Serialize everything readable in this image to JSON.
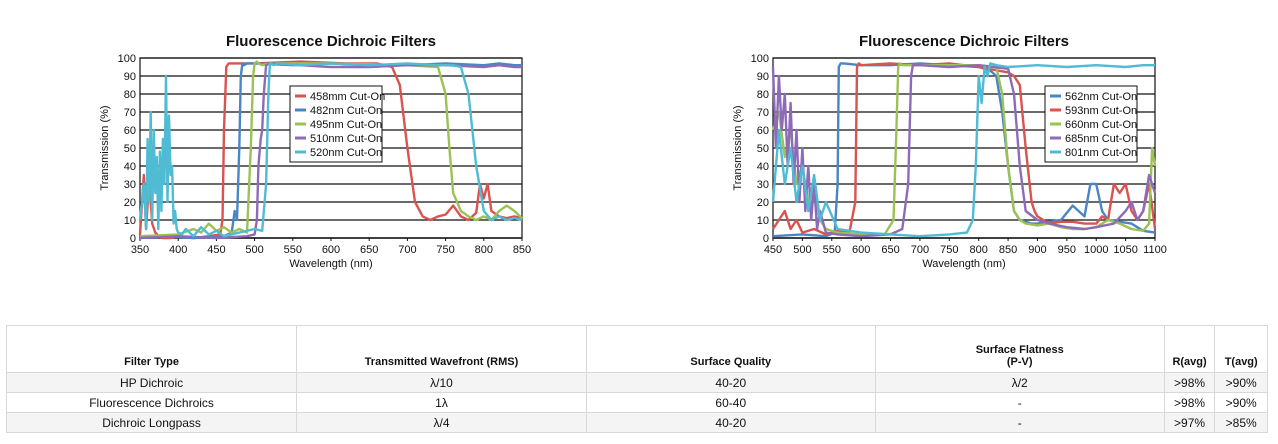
{
  "charts": {
    "chart_data": [
      {
        "type": "line",
        "title": "Fluorescence Dichroic Filters",
        "xlabel": "Wavelength (nm)",
        "ylabel": "Transmission (%)",
        "xlim": [
          350,
          850
        ],
        "ylim": [
          0,
          100
        ],
        "xticks": [
          "350",
          "400",
          "450",
          "500",
          "550",
          "600",
          "650",
          "700",
          "750",
          "800",
          "850"
        ],
        "yticks": [
          "0",
          "10",
          "20",
          "30",
          "40",
          "50",
          "60",
          "70",
          "80",
          "90",
          "100"
        ],
        "grid": "horizontal",
        "legend": "center-left",
        "series": [
          {
            "name": "458mm Cut-On",
            "color": "#d9534f",
            "x": [
              350,
              355,
              358,
              362,
              366,
              370,
              375,
              380,
              390,
              400,
              420,
              440,
              455,
              458,
              460,
              463,
              466,
              470,
              500,
              560,
              620,
              660,
              680,
              690,
              700,
              710,
              720,
              730,
              740,
              750,
              760,
              770,
              780,
              790,
              795,
              800,
              805,
              810,
              820,
              830,
              840,
              850
            ],
            "y": [
              2,
              35,
              5,
              33,
              8,
              3,
              1,
              0,
              0,
              1,
              0,
              1,
              2,
              10,
              60,
              95,
              97,
              97,
              97,
              98,
              97,
              97,
              95,
              85,
              50,
              20,
              12,
              10,
              12,
              13,
              18,
              12,
              10,
              14,
              30,
              22,
              30,
              15,
              12,
              11,
              12,
              11
            ]
          },
          {
            "name": "482nm Cut-On",
            "color": "#4a86c5",
            "x": [
              350,
              380,
              420,
              460,
              470,
              474,
              477,
              480,
              482,
              484,
              486,
              490,
              500,
              550,
              600,
              650,
              700,
              750,
              800,
              820,
              840,
              850
            ],
            "y": [
              0,
              1,
              0,
              1,
              3,
              15,
              10,
              50,
              90,
              97,
              96,
              97,
              97,
              96,
              97,
              96,
              96,
              97,
              96,
              97,
              96,
              96
            ],
            "t": [
              0,
              1,
              0,
              1,
              3,
              15,
              10,
              50,
              90,
              97,
              96,
              97,
              97,
              96,
              97,
              96,
              96,
              97,
              96,
              97,
              96,
              96
            ]
          },
          {
            "name": "495nm Cut-On",
            "color": "#9cc255",
            "x": [
              350,
              400,
              420,
              430,
              440,
              450,
              460,
              470,
              480,
              490,
              495,
              498,
              500,
              503,
              505,
              510,
              520,
              600,
              700,
              740,
              750,
              755,
              760,
              770,
              780,
              790,
              800,
              810,
              820,
              830,
              840,
              850
            ],
            "y": [
              1,
              2,
              5,
              3,
              8,
              4,
              6,
              3,
              5,
              3,
              50,
              90,
              97,
              98,
              97,
              96,
              97,
              97,
              96,
              95,
              80,
              50,
              25,
              15,
              12,
              10,
              12,
              10,
              15,
              18,
              15,
              11
            ],
            "t": [
              1,
              2,
              5,
              3,
              8,
              4,
              6,
              3,
              5,
              3,
              50,
              90,
              97,
              98,
              97,
              96,
              97,
              97,
              96,
              95,
              80,
              50,
              25,
              15,
              12,
              10,
              12,
              10,
              15,
              18,
              15,
              11
            ]
          },
          {
            "name": "510nm Cut-On",
            "color": "#8e6bb8",
            "x": [
              350,
              400,
              450,
              490,
              500,
              503,
              505,
              508,
              510,
              512,
              515,
              520,
              560,
              600,
              650,
              700,
              750,
              800,
              820,
              840,
              850
            ],
            "y": [
              0,
              1,
              0,
              1,
              2,
              10,
              40,
              55,
              60,
              80,
              96,
              97,
              96,
              95,
              95,
              96,
              96,
              95,
              96,
              95,
              95
            ]
          },
          {
            "name": "520nm Cut-On",
            "color": "#4fbcd4",
            "x": [
              350,
              355,
              358,
              360,
              362,
              364,
              366,
              368,
              370,
              372,
              374,
              376,
              378,
              380,
              382,
              384,
              386,
              388,
              390,
              392,
              394,
              396,
              398,
              400,
              405,
              410,
              420,
              430,
              440,
              450,
              460,
              480,
              500,
              510,
              515,
              518,
              520,
              522,
              525,
              530,
              560,
              600,
              650,
              700,
              740,
              760,
              770,
              780,
              790,
              800,
              810,
              820,
              830,
              840,
              850
            ],
            "y": [
              10,
              30,
              5,
              55,
              20,
              70,
              10,
              60,
              25,
              45,
              5,
              48,
              15,
              55,
              30,
              90,
              20,
              68,
              35,
              40,
              8,
              15,
              5,
              3,
              2,
              5,
              1,
              6,
              2,
              4,
              1,
              3,
              5,
              4,
              30,
              80,
              97,
              97,
              96,
              97,
              96,
              97,
              96,
              97,
              96,
              96,
              95,
              80,
              40,
              15,
              10,
              12,
              10,
              11,
              10
            ]
          }
        ]
      },
      {
        "type": "line",
        "title": "Fluorescence Dichroic Filters",
        "xlabel": "Wavelength (nm)",
        "ylabel": "Transmission (%)",
        "xlim": [
          450,
          1100
        ],
        "ylim": [
          0,
          100
        ],
        "xticks": [
          "450",
          "500",
          "550",
          "600",
          "650",
          "700",
          "750",
          "800",
          "850",
          "900",
          "950",
          "1000",
          "1050",
          "1100"
        ],
        "yticks": [
          "0",
          "10",
          "20",
          "30",
          "40",
          "50",
          "60",
          "70",
          "80",
          "90",
          "100"
        ],
        "grid": "horizontal",
        "legend": "center-right",
        "series": [
          {
            "name": "562nm Cut-On",
            "color": "#4a86c5",
            "x": [
              450,
              500,
              540,
              555,
              560,
              562,
              565,
              570,
              600,
              650,
              700,
              750,
              800,
              820,
              830,
              840,
              850,
              860,
              870,
              880,
              890,
              900,
              920,
              940,
              960,
              980,
              990,
              1000,
              1010,
              1020,
              1040,
              1060,
              1080,
              1100
            ],
            "y": [
              1,
              2,
              1,
              3,
              30,
              95,
              97,
              97,
              96,
              96,
              97,
              96,
              95,
              93,
              90,
              70,
              40,
              15,
              10,
              9,
              8,
              8,
              9,
              10,
              18,
              12,
              30,
              30,
              15,
              10,
              9,
              8,
              4,
              3
            ]
          },
          {
            "name": "593nm Cut-On",
            "color": "#d9534f",
            "x": [
              450,
              470,
              480,
              490,
              500,
              520,
              540,
              560,
              580,
              590,
              593,
              596,
              600,
              650,
              700,
              750,
              800,
              850,
              860,
              870,
              880,
              890,
              895,
              900,
              910,
              920,
              940,
              960,
              980,
              1000,
              1010,
              1020,
              1030,
              1040,
              1050,
              1060,
              1070,
              1080,
              1090,
              1100
            ],
            "y": [
              5,
              15,
              5,
              10,
              3,
              5,
              2,
              4,
              3,
              20,
              95,
              97,
              96,
              97,
              96,
              97,
              95,
              92,
              90,
              85,
              50,
              20,
              15,
              12,
              10,
              8,
              9,
              9,
              8,
              8,
              12,
              10,
              30,
              25,
              30,
              15,
              10,
              15,
              30,
              5
            ]
          },
          {
            "name": "660nm Cut-On",
            "color": "#9cc255",
            "x": [
              450,
              460,
              470,
              480,
              490,
              500,
              510,
              520,
              530,
              540,
              560,
              600,
              640,
              655,
              660,
              663,
              666,
              670,
              700,
              750,
              800,
              830,
              840,
              850,
              860,
              870,
              880,
              900,
              920,
              940,
              960,
              980,
              1000,
              1020,
              1040,
              1060,
              1080,
              1090,
              1095,
              1100
            ],
            "y": [
              60,
              70,
              45,
              60,
              30,
              40,
              20,
              25,
              10,
              5,
              3,
              2,
              2,
              10,
              60,
              95,
              97,
              96,
              96,
              96,
              96,
              95,
              80,
              40,
              15,
              10,
              8,
              7,
              8,
              6,
              5,
              5,
              6,
              10,
              8,
              5,
              4,
              8,
              50,
              40
            ]
          },
          {
            "name": "685nm Cut-On",
            "color": "#8e6bb8",
            "x": [
              450,
              455,
              460,
              465,
              470,
              475,
              480,
              485,
              490,
              495,
              500,
              505,
              510,
              515,
              520,
              525,
              530,
              540,
              560,
              600,
              650,
              670,
              680,
              685,
              688,
              690,
              700,
              750,
              800,
              850,
              860,
              870,
              880,
              900,
              920,
              950,
              980,
              1000,
              1030,
              1050,
              1060,
              1070,
              1080,
              1090,
              1100
            ],
            "y": [
              95,
              50,
              90,
              60,
              80,
              40,
              75,
              30,
              60,
              20,
              50,
              15,
              40,
              10,
              30,
              5,
              15,
              3,
              2,
              1,
              2,
              5,
              30,
              90,
              96,
              96,
              96,
              95,
              96,
              94,
              80,
              40,
              15,
              10,
              8,
              6,
              5,
              6,
              8,
              15,
              20,
              10,
              15,
              35,
              25
            ]
          },
          {
            "name": "801nm Cut-On",
            "color": "#4fbcd4",
            "x": [
              450,
              460,
              470,
              480,
              490,
              500,
              510,
              520,
              530,
              540,
              560,
              600,
              650,
              700,
              750,
              780,
              790,
              795,
              800,
              805,
              810,
              815,
              820,
              830,
              850,
              900,
              950,
              1000,
              1050,
              1080,
              1100
            ],
            "y": [
              20,
              60,
              30,
              50,
              20,
              40,
              15,
              35,
              10,
              20,
              5,
              3,
              2,
              1,
              2,
              3,
              10,
              40,
              90,
              75,
              95,
              90,
              97,
              96,
              95,
              96,
              95,
              96,
              95,
              96,
              96
            ]
          }
        ]
      }
    ]
  },
  "table": {
    "headers": {
      "filter_type": "Filter Type",
      "wavefront": "Transmitted Wavefront (RMS)",
      "surface_quality": "Surface Quality",
      "flatness_line1": "Surface Flatness",
      "flatness_line2": "(P-V)",
      "ravg": "R(avg)",
      "tavg": "T(avg)"
    },
    "rows": [
      {
        "type": "HP Dichroic",
        "wavefront": "λ/10",
        "quality": "40-20",
        "flatness": "λ/2",
        "ravg": ">98%",
        "tavg": ">90%"
      },
      {
        "type": "Fluorescence Dichroics",
        "wavefront": "1λ",
        "quality": "60-40",
        "flatness": "-",
        "ravg": ">98%",
        "tavg": ">90%"
      },
      {
        "type": "Dichroic Longpass",
        "wavefront": "λ/4",
        "quality": "40-20",
        "flatness": "-",
        "ravg": ">97%",
        "tavg": ">85%"
      }
    ]
  }
}
